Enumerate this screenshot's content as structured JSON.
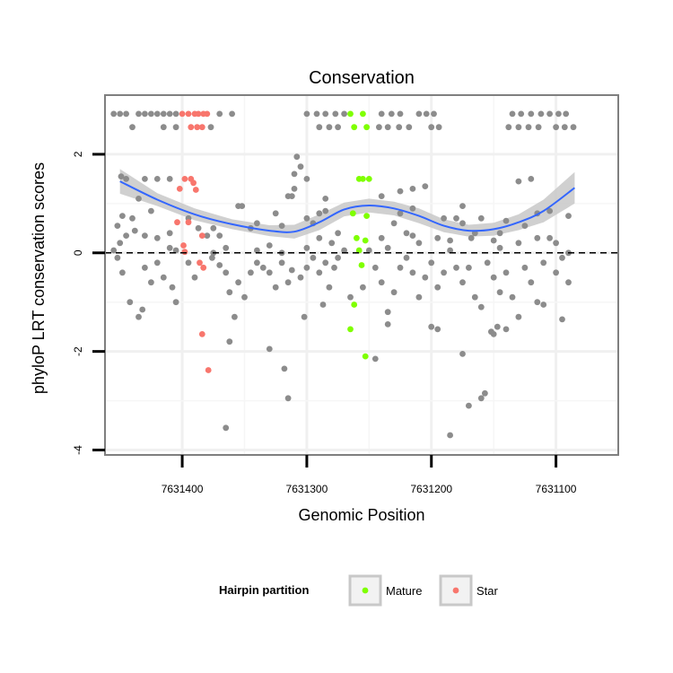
{
  "chart_data": {
    "type": "scatter",
    "title": "Conservation",
    "xlabel": "Genomic Position",
    "ylabel": "phyloP LRT conservation scores",
    "x_reversed": true,
    "xlim": [
      7631462,
      7631050
    ],
    "ylim": [
      -4.1,
      3.2
    ],
    "x_ticks": [
      7631400,
      7631300,
      7631200,
      7631100
    ],
    "x_tick_labels": [
      "7631400",
      "7631300",
      "7631200",
      "7631100"
    ],
    "y_ticks": [
      -4,
      -2,
      0,
      2
    ],
    "y_tick_labels": [
      "-4",
      "-2",
      "0",
      "2"
    ],
    "reference_line": {
      "y": 0,
      "style": "dashed"
    },
    "grid": true,
    "legend": {
      "title": "Hairpin partition",
      "position": "bottom",
      "entries": [
        {
          "label": "Mature",
          "color": "#7fff00"
        },
        {
          "label": "Star",
          "color": "#f8766d"
        }
      ]
    },
    "colors": {
      "other": "#8c8c8c",
      "smooth": "#3366ff",
      "band": "#c8c8c8"
    },
    "smooth": {
      "x": [
        7631450,
        7631420,
        7631390,
        7631360,
        7631330,
        7631310,
        7631290,
        7631270,
        7631250,
        7631230,
        7631210,
        7631190,
        7631170,
        7631150,
        7631130,
        7631110,
        7631085
      ],
      "y": [
        1.45,
        1.08,
        0.78,
        0.58,
        0.45,
        0.43,
        0.62,
        0.88,
        0.96,
        0.9,
        0.75,
        0.55,
        0.45,
        0.48,
        0.62,
        0.85,
        1.32
      ],
      "lower": [
        1.2,
        0.95,
        0.66,
        0.48,
        0.34,
        0.29,
        0.46,
        0.74,
        0.82,
        0.76,
        0.6,
        0.42,
        0.33,
        0.35,
        0.46,
        0.62,
        1.0
      ],
      "upper": [
        1.7,
        1.21,
        0.9,
        0.68,
        0.56,
        0.57,
        0.78,
        1.02,
        1.1,
        1.04,
        0.9,
        0.68,
        0.57,
        0.61,
        0.78,
        1.08,
        1.64
      ]
    },
    "series": [
      {
        "name": "Mature",
        "color": "#7fff00",
        "points": [
          [
            7631265,
            2.82
          ],
          [
            7631255,
            2.82
          ],
          [
            7631262,
            2.55
          ],
          [
            7631252,
            2.55
          ],
          [
            7631258,
            1.5
          ],
          [
            7631255,
            1.5
          ],
          [
            7631250,
            1.5
          ],
          [
            7631263,
            0.8
          ],
          [
            7631252,
            0.75
          ],
          [
            7631260,
            0.3
          ],
          [
            7631253,
            0.25
          ],
          [
            7631258,
            0.05
          ],
          [
            7631256,
            -0.25
          ],
          [
            7631262,
            -1.05
          ],
          [
            7631265,
            -1.55
          ],
          [
            7631253,
            -2.1
          ]
        ]
      },
      {
        "name": "Star",
        "color": "#f8766d",
        "points": [
          [
            7631400,
            2.82
          ],
          [
            7631395,
            2.82
          ],
          [
            7631390,
            2.82
          ],
          [
            7631387,
            2.82
          ],
          [
            7631383,
            2.82
          ],
          [
            7631380,
            2.82
          ],
          [
            7631393,
            2.55
          ],
          [
            7631388,
            2.55
          ],
          [
            7631384,
            2.55
          ],
          [
            7631398,
            1.5
          ],
          [
            7631393,
            1.5
          ],
          [
            7631391,
            1.42
          ],
          [
            7631402,
            1.3
          ],
          [
            7631389,
            1.28
          ],
          [
            7631404,
            0.62
          ],
          [
            7631395,
            0.62
          ],
          [
            7631384,
            0.35
          ],
          [
            7631399,
            0.15
          ],
          [
            7631398,
            0.02
          ],
          [
            7631386,
            -0.2
          ],
          [
            7631383,
            -0.3
          ],
          [
            7631384,
            -1.65
          ],
          [
            7631379,
            -2.38
          ]
        ]
      },
      {
        "color": "#8c8c8c",
        "points": [
          [
            7631455,
            2.82
          ],
          [
            7631450,
            2.82
          ],
          [
            7631445,
            2.82
          ],
          [
            7631435,
            2.82
          ],
          [
            7631430,
            2.82
          ],
          [
            7631425,
            2.82
          ],
          [
            7631420,
            2.82
          ],
          [
            7631415,
            2.82
          ],
          [
            7631410,
            2.82
          ],
          [
            7631405,
            2.82
          ],
          [
            7631370,
            2.82
          ],
          [
            7631360,
            2.82
          ],
          [
            7631300,
            2.82
          ],
          [
            7631292,
            2.82
          ],
          [
            7631285,
            2.82
          ],
          [
            7631277,
            2.82
          ],
          [
            7631270,
            2.82
          ],
          [
            7631240,
            2.82
          ],
          [
            7631232,
            2.82
          ],
          [
            7631225,
            2.82
          ],
          [
            7631210,
            2.82
          ],
          [
            7631204,
            2.82
          ],
          [
            7631198,
            2.82
          ],
          [
            7631135,
            2.82
          ],
          [
            7631128,
            2.82
          ],
          [
            7631120,
            2.82
          ],
          [
            7631112,
            2.82
          ],
          [
            7631105,
            2.82
          ],
          [
            7631098,
            2.82
          ],
          [
            7631092,
            2.82
          ],
          [
            7631440,
            2.55
          ],
          [
            7631415,
            2.55
          ],
          [
            7631405,
            2.55
          ],
          [
            7631377,
            2.55
          ],
          [
            7631290,
            2.55
          ],
          [
            7631282,
            2.55
          ],
          [
            7631275,
            2.55
          ],
          [
            7631242,
            2.55
          ],
          [
            7631235,
            2.55
          ],
          [
            7631226,
            2.55
          ],
          [
            7631218,
            2.55
          ],
          [
            7631200,
            2.55
          ],
          [
            7631194,
            2.55
          ],
          [
            7631138,
            2.55
          ],
          [
            7631130,
            2.55
          ],
          [
            7631122,
            2.55
          ],
          [
            7631114,
            2.55
          ],
          [
            7631100,
            2.55
          ],
          [
            7631093,
            2.55
          ],
          [
            7631086,
            2.55
          ],
          [
            7631308,
            1.95
          ],
          [
            7631305,
            1.75
          ],
          [
            7631310,
            1.6
          ],
          [
            7631449,
            1.55
          ],
          [
            7631445,
            1.5
          ],
          [
            7631430,
            1.5
          ],
          [
            7631420,
            1.5
          ],
          [
            7631410,
            1.5
          ],
          [
            7631300,
            1.5
          ],
          [
            7631310,
            1.3
          ],
          [
            7631315,
            1.15
          ],
          [
            7631312,
            1.15
          ],
          [
            7631130,
            1.45
          ],
          [
            7631120,
            1.5
          ],
          [
            7631205,
            1.35
          ],
          [
            7631215,
            1.3
          ],
          [
            7631225,
            1.25
          ],
          [
            7631240,
            1.15
          ],
          [
            7631285,
            1.1
          ],
          [
            7631435,
            1.1
          ],
          [
            7631425,
            0.85
          ],
          [
            7631440,
            0.7
          ],
          [
            7631448,
            0.75
          ],
          [
            7631352,
            0.95
          ],
          [
            7631355,
            0.95
          ],
          [
            7631290,
            0.8
          ],
          [
            7631285,
            0.85
          ],
          [
            7631230,
            0.6
          ],
          [
            7631220,
            0.4
          ],
          [
            7631215,
            0.35
          ],
          [
            7631190,
            0.7
          ],
          [
            7631180,
            0.7
          ],
          [
            7631175,
            0.6
          ],
          [
            7631160,
            0.7
          ],
          [
            7631140,
            0.65
          ],
          [
            7631125,
            0.55
          ],
          [
            7631115,
            0.8
          ],
          [
            7631105,
            0.85
          ],
          [
            7631090,
            0.75
          ],
          [
            7631300,
            0.7
          ],
          [
            7631295,
            0.6
          ],
          [
            7631320,
            0.55
          ],
          [
            7631345,
            0.5
          ],
          [
            7631340,
            0.6
          ],
          [
            7631375,
            0.5
          ],
          [
            7631370,
            0.35
          ],
          [
            7631380,
            0.35
          ],
          [
            7631410,
            0.4
          ],
          [
            7631420,
            0.3
          ],
          [
            7631430,
            0.35
          ],
          [
            7631438,
            0.45
          ],
          [
            7631445,
            0.35
          ],
          [
            7631450,
            0.2
          ],
          [
            7631455,
            0.05
          ],
          [
            7631452,
            -0.1
          ],
          [
            7631448,
            -0.4
          ],
          [
            7631442,
            -1.0
          ],
          [
            7631430,
            -0.3
          ],
          [
            7631425,
            -0.6
          ],
          [
            7631420,
            -0.2
          ],
          [
            7631415,
            -0.5
          ],
          [
            7631408,
            -0.7
          ],
          [
            7631410,
            0.1
          ],
          [
            7631405,
            -1.0
          ],
          [
            7631395,
            -0.2
          ],
          [
            7631390,
            -0.5
          ],
          [
            7631376,
            -0.1
          ],
          [
            7631370,
            -0.25
          ],
          [
            7631365,
            -0.4
          ],
          [
            7631362,
            -0.8
          ],
          [
            7631358,
            -1.3
          ],
          [
            7631355,
            -0.6
          ],
          [
            7631350,
            -0.9
          ],
          [
            7631345,
            -0.4
          ],
          [
            7631340,
            -0.2
          ],
          [
            7631335,
            -0.3
          ],
          [
            7631330,
            -0.4
          ],
          [
            7631325,
            -0.7
          ],
          [
            7631320,
            -0.2
          ],
          [
            7631315,
            -0.6
          ],
          [
            7631312,
            -0.35
          ],
          [
            7631305,
            -0.5
          ],
          [
            7631300,
            -0.3
          ],
          [
            7631295,
            -0.1
          ],
          [
            7631290,
            -0.4
          ],
          [
            7631285,
            -0.2
          ],
          [
            7631282,
            -0.7
          ],
          [
            7631278,
            -0.3
          ],
          [
            7631275,
            -0.1
          ],
          [
            7631270,
            0.05
          ],
          [
            7631245,
            -0.3
          ],
          [
            7631240,
            -0.6
          ],
          [
            7631235,
            -1.2
          ],
          [
            7631230,
            -0.8
          ],
          [
            7631225,
            -0.3
          ],
          [
            7631220,
            -0.1
          ],
          [
            7631215,
            -0.4
          ],
          [
            7631210,
            -0.9
          ],
          [
            7631205,
            -0.5
          ],
          [
            7631200,
            -0.2
          ],
          [
            7631195,
            -0.7
          ],
          [
            7631190,
            -0.4
          ],
          [
            7631185,
            0.05
          ],
          [
            7631180,
            -0.3
          ],
          [
            7631175,
            -0.6
          ],
          [
            7631170,
            -0.3
          ],
          [
            7631165,
            -0.9
          ],
          [
            7631160,
            -1.1
          ],
          [
            7631155,
            -0.2
          ],
          [
            7631150,
            -0.5
          ],
          [
            7631145,
            -0.8
          ],
          [
            7631140,
            -0.4
          ],
          [
            7631135,
            -0.9
          ],
          [
            7631130,
            -1.3
          ],
          [
            7631125,
            -0.3
          ],
          [
            7631120,
            -0.6
          ],
          [
            7631115,
            -1.0
          ],
          [
            7631110,
            -0.2
          ],
          [
            7631100,
            -0.4
          ],
          [
            7631095,
            -0.1
          ],
          [
            7631090,
            -0.6
          ],
          [
            7631435,
            -1.3
          ],
          [
            7631432,
            -1.15
          ],
          [
            7631362,
            -1.8
          ],
          [
            7631330,
            -1.95
          ],
          [
            7631318,
            -2.35
          ],
          [
            7631315,
            -2.95
          ],
          [
            7631245,
            -2.15
          ],
          [
            7631175,
            -2.05
          ],
          [
            7631170,
            -3.1
          ],
          [
            7631160,
            -2.95
          ],
          [
            7631157,
            -2.85
          ],
          [
            7631152,
            -1.6
          ],
          [
            7631147,
            -1.5
          ],
          [
            7631140,
            -1.55
          ],
          [
            7631185,
            -3.7
          ],
          [
            7631365,
            -3.55
          ],
          [
            7631302,
            -1.3
          ],
          [
            7631287,
            -1.05
          ],
          [
            7631265,
            -0.9
          ],
          [
            7631255,
            -0.7
          ],
          [
            7631235,
            -1.45
          ],
          [
            7631200,
            -1.5
          ],
          [
            7631195,
            -1.55
          ],
          [
            7631150,
            -1.65
          ],
          [
            7631110,
            -1.05
          ],
          [
            7631095,
            -1.35
          ],
          [
            7631452,
            0.55
          ],
          [
            7631405,
            0.05
          ],
          [
            7631375,
            0.0
          ],
          [
            7631365,
            0.1
          ],
          [
            7631340,
            0.05
          ],
          [
            7631330,
            0.15
          ],
          [
            7631320,
            0.0
          ],
          [
            7631300,
            0.1
          ],
          [
            7631280,
            0.2
          ],
          [
            7631250,
            0.05
          ],
          [
            7631240,
            0.3
          ],
          [
            7631235,
            0.1
          ],
          [
            7631210,
            0.2
          ],
          [
            7631195,
            0.3
          ],
          [
            7631185,
            0.25
          ],
          [
            7631165,
            0.4
          ],
          [
            7631150,
            0.25
          ],
          [
            7631145,
            0.1
          ],
          [
            7631130,
            0.2
          ],
          [
            7631115,
            0.3
          ],
          [
            7631100,
            0.2
          ],
          [
            7631090,
            0.0
          ],
          [
            7631395,
            0.7
          ],
          [
            7631387,
            0.5
          ],
          [
            7631325,
            0.8
          ],
          [
            7631290,
            0.3
          ],
          [
            7631275,
            0.4
          ],
          [
            7631225,
            0.8
          ],
          [
            7631215,
            0.9
          ],
          [
            7631175,
            0.95
          ],
          [
            7631168,
            0.3
          ],
          [
            7631145,
            0.4
          ],
          [
            7631105,
            0.3
          ]
        ]
      }
    ]
  }
}
